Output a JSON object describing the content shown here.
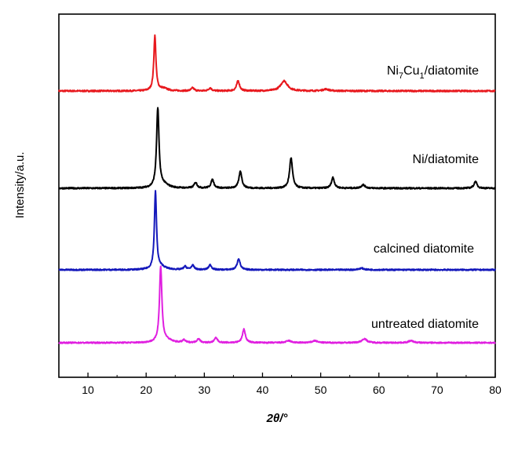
{
  "chart_data": {
    "type": "line",
    "xlabel": "2θ/°",
    "ylabel": "Intensity/a.u.",
    "xlim": [
      5,
      80
    ],
    "xticks": [
      "10",
      "20",
      "30",
      "40",
      "50",
      "60",
      "70",
      "80"
    ],
    "grid": false,
    "legend": "labels beside each trace (right side)",
    "series": [
      {
        "name": "Ni7Cu1/diatomite",
        "label_parts": [
          {
            "t": "Ni",
            "sub": false
          },
          {
            "t": "7",
            "sub": true
          },
          {
            "t": "Cu",
            "sub": false
          },
          {
            "t": "1",
            "sub": true
          },
          {
            "t": "/diatomite",
            "sub": false
          }
        ],
        "color": "#e8191e",
        "baseline": 0.0,
        "peaks": [
          {
            "x": 21.5,
            "h": 0.92,
            "w": 0.22
          },
          {
            "x": 23.0,
            "h": 0.04,
            "w": 0.8
          },
          {
            "x": 28.0,
            "h": 0.05,
            "w": 0.3
          },
          {
            "x": 31.0,
            "h": 0.05,
            "w": 0.3
          },
          {
            "x": 35.8,
            "h": 0.17,
            "w": 0.3
          },
          {
            "x": 43.7,
            "h": 0.17,
            "w": 0.7
          },
          {
            "x": 50.9,
            "h": 0.03,
            "w": 0.6
          }
        ]
      },
      {
        "name": "Ni/diatomite",
        "color": "#000000",
        "baseline": 0.0,
        "peaks": [
          {
            "x": 22.0,
            "h": 1.4,
            "w": 0.25
          },
          {
            "x": 23.0,
            "h": 0.06,
            "w": 1.0
          },
          {
            "x": 28.5,
            "h": 0.1,
            "w": 0.3
          },
          {
            "x": 31.4,
            "h": 0.15,
            "w": 0.3
          },
          {
            "x": 36.2,
            "h": 0.3,
            "w": 0.3
          },
          {
            "x": 44.9,
            "h": 0.54,
            "w": 0.3
          },
          {
            "x": 52.1,
            "h": 0.19,
            "w": 0.3
          },
          {
            "x": 57.3,
            "h": 0.06,
            "w": 0.4
          },
          {
            "x": 76.6,
            "h": 0.12,
            "w": 0.3
          }
        ]
      },
      {
        "name": "calcined diatomite",
        "color": "#1418bb",
        "baseline": 0.0,
        "peaks": [
          {
            "x": 21.6,
            "h": 1.45,
            "w": 0.22
          },
          {
            "x": 22.6,
            "h": 0.05,
            "w": 0.9
          },
          {
            "x": 26.7,
            "h": 0.06,
            "w": 0.3
          },
          {
            "x": 28.0,
            "h": 0.08,
            "w": 0.3
          },
          {
            "x": 31.0,
            "h": 0.09,
            "w": 0.3
          },
          {
            "x": 35.9,
            "h": 0.21,
            "w": 0.3
          },
          {
            "x": 57.0,
            "h": 0.03,
            "w": 0.5
          }
        ]
      },
      {
        "name": "untreated diatomite",
        "color": "#e01fe0",
        "baseline": 0.0,
        "peaks": [
          {
            "x": 22.5,
            "h": 1.5,
            "w": 0.25
          },
          {
            "x": 23.5,
            "h": 0.05,
            "w": 1.0
          },
          {
            "x": 26.5,
            "h": 0.05,
            "w": 0.3
          },
          {
            "x": 29.0,
            "h": 0.08,
            "w": 0.3
          },
          {
            "x": 32.0,
            "h": 0.1,
            "w": 0.3
          },
          {
            "x": 36.8,
            "h": 0.27,
            "w": 0.3
          },
          {
            "x": 44.5,
            "h": 0.04,
            "w": 0.5
          },
          {
            "x": 49.0,
            "h": 0.04,
            "w": 0.5
          },
          {
            "x": 57.5,
            "h": 0.08,
            "w": 0.5
          },
          {
            "x": 65.5,
            "h": 0.04,
            "w": 0.5
          }
        ]
      }
    ]
  }
}
